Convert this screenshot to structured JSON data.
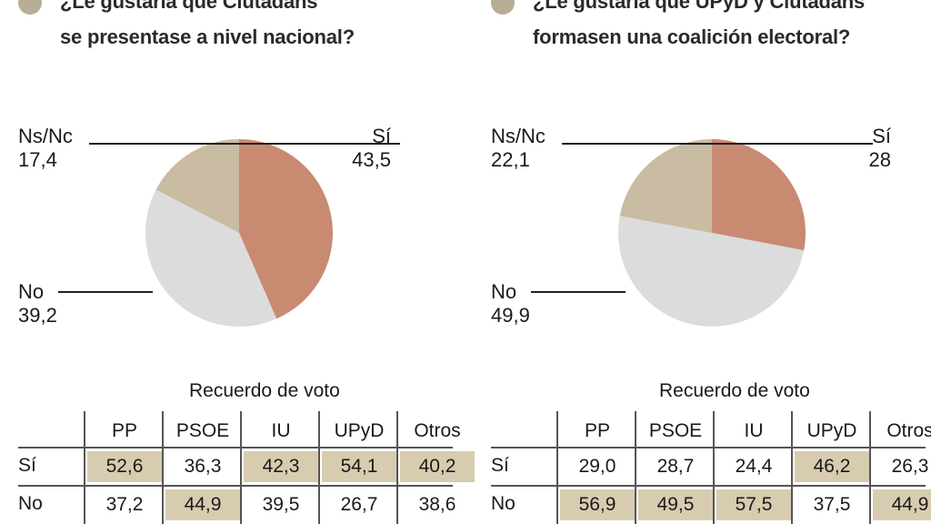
{
  "chart_data": [
    {
      "type": "pie",
      "title": "¿Le gustaría que Ciutadans se presentase a nivel nacional?",
      "title_lines": [
        "¿Le gustaría que Ciutadans",
        "se presentase a nivel nacional?"
      ],
      "slices": [
        {
          "label": "Sí",
          "value": 43.5,
          "value_text": "43,5",
          "color": "#c98a72"
        },
        {
          "label": "No",
          "value": 39.2,
          "value_text": "39,2",
          "color": "#dcdcdc"
        },
        {
          "label": "Ns/Nc",
          "value": 17.4,
          "value_text": "17,4",
          "color": "#c9bca2"
        }
      ],
      "table": {
        "title": "Recuerdo de voto",
        "columns": [
          "PP",
          "PSOE",
          "IU",
          "UPyD",
          "Otros"
        ],
        "rows": [
          {
            "label": "Sí",
            "values": [
              "52,6",
              "36,3",
              "42,3",
              "54,1",
              "40,2"
            ],
            "highlight": [
              true,
              false,
              true,
              true,
              true
            ]
          },
          {
            "label": "No",
            "values": [
              "37,2",
              "44,9",
              "39,5",
              "26,7",
              "38,6"
            ],
            "highlight": [
              false,
              true,
              false,
              false,
              false
            ]
          }
        ]
      }
    },
    {
      "type": "pie",
      "title": "¿Le gustaría que UPyD y Ciutadans formasen una coalición electoral?",
      "title_lines": [
        "¿Le gustaría que UPyD y Ciutadans",
        "formasen una coalición electoral?"
      ],
      "slices": [
        {
          "label": "Sí",
          "value": 28,
          "value_text": "28",
          "color": "#c98a72"
        },
        {
          "label": "No",
          "value": 49.9,
          "value_text": "49,9",
          "color": "#dcdcdc"
        },
        {
          "label": "Ns/Nc",
          "value": 22.1,
          "value_text": "22,1",
          "color": "#c9bca2"
        }
      ],
      "table": {
        "title": "Recuerdo de voto",
        "columns": [
          "PP",
          "PSOE",
          "IU",
          "UPyD",
          "Otros"
        ],
        "rows": [
          {
            "label": "Sí",
            "values": [
              "29,0",
              "28,7",
              "24,4",
              "46,2",
              "26,3"
            ],
            "highlight": [
              false,
              false,
              false,
              true,
              false
            ]
          },
          {
            "label": "No",
            "values": [
              "56,9",
              "49,5",
              "57,5",
              "37,5",
              "44,9"
            ],
            "highlight": [
              true,
              true,
              true,
              false,
              true
            ]
          }
        ]
      }
    }
  ],
  "colors": {
    "bullet": "#b8ad96",
    "highlight": "#d8ccb0",
    "si": "#c98a72",
    "no": "#dcdcdc",
    "nsnc": "#c9bca2"
  }
}
